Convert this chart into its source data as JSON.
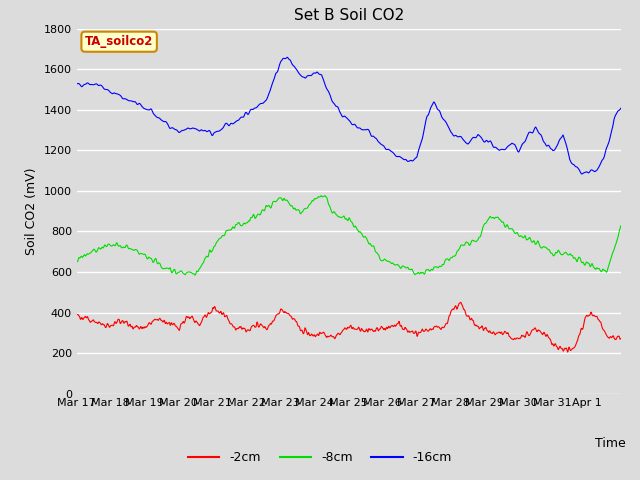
{
  "title": "Set B Soil CO2",
  "xlabel": "Time",
  "ylabel": "Soil CO2 (mV)",
  "ylim": [
    0,
    1800
  ],
  "yticks": [
    0,
    200,
    400,
    600,
    800,
    1000,
    1200,
    1400,
    1600,
    1800
  ],
  "bg_color": "#dcdcdc",
  "annotation_text": "TA_soilco2",
  "annotation_bg": "#ffffcc",
  "annotation_border": "#cc8800",
  "legend_entries": [
    "-2cm",
    "-8cm",
    "-16cm"
  ],
  "legend_colors": [
    "#ff0000",
    "#00dd00",
    "#0000ff"
  ],
  "line_colors": [
    "#ff0000",
    "#00dd00",
    "#0000ff"
  ],
  "x_labels": [
    "Mar 17",
    "Mar 18",
    "Mar 19",
    "Mar 20",
    "Mar 21",
    "Mar 22",
    "Mar 23",
    "Mar 24",
    "Mar 25",
    "Mar 26",
    "Mar 27",
    "Mar 28",
    "Mar 29",
    "Mar 30",
    "Mar 31",
    "Apr 1"
  ]
}
